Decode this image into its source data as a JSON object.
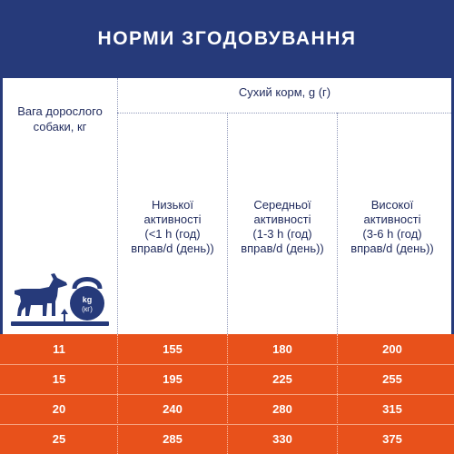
{
  "header": {
    "title": "НОРМИ ЗГОДОВУВАННЯ"
  },
  "table": {
    "weight_header": [
      "Вага дорослого",
      "собаки, кг"
    ],
    "dry_food_header": "Сухий корм, g (г)",
    "activity_headers": [
      [
        "Низької",
        "активності",
        "(<1 h (год)",
        "вправ/d (день))"
      ],
      [
        "Середньої",
        "активності",
        "(1-3 h (год)",
        "вправ/d (день))"
      ],
      [
        "Високої",
        "активності",
        "(3-6 h (год)",
        "вправ/d (день))"
      ]
    ],
    "rows": [
      {
        "weight": "11",
        "low": "155",
        "medium": "180",
        "high": "200"
      },
      {
        "weight": "15",
        "low": "195",
        "medium": "225",
        "high": "255"
      },
      {
        "weight": "20",
        "low": "240",
        "medium": "280",
        "high": "315"
      },
      {
        "weight": "25",
        "low": "285",
        "medium": "330",
        "high": "375"
      }
    ]
  },
  "illustration": {
    "icons": [
      "dog-icon",
      "kettlebell-icon",
      "arrow-up-icon"
    ],
    "kettlebell_label": [
      "kg",
      "(кг)"
    ]
  },
  "colors": {
    "header_bg": "#263a7a",
    "row_bg": "#e8511b",
    "text": "#1f2a5c"
  }
}
